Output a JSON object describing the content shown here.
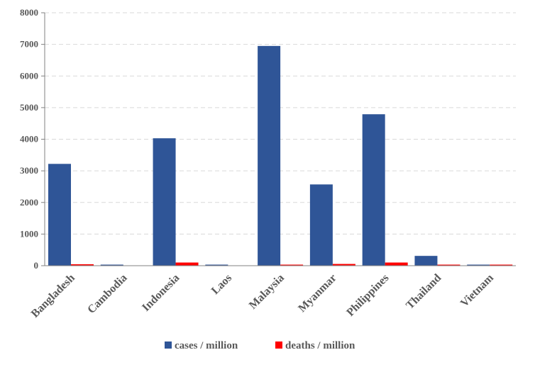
{
  "chart_data": {
    "type": "bar",
    "title": "",
    "xlabel": "",
    "ylabel": "",
    "ylim": [
      0,
      8000
    ],
    "yticks": [
      "0",
      "1000",
      "2000",
      "3000",
      "4000",
      "5000",
      "6000",
      "7000",
      "8000"
    ],
    "grid": true,
    "legend_position": "bottom",
    "categories": [
      "Bangladesh",
      "Cambodia",
      "Indonesia",
      "Laos",
      "Malaysia",
      "Myanmar",
      "Philippines",
      "Thailand",
      "Vietnam"
    ],
    "series": [
      {
        "name": "cases / million",
        "color": "#2F5597",
        "values": [
          3220,
          20,
          4030,
          15,
          6950,
          2570,
          4790,
          310,
          15
        ]
      },
      {
        "name": "deaths / million",
        "color": "#FF0000",
        "values": [
          45,
          0,
          100,
          0,
          20,
          55,
          100,
          10,
          10
        ]
      }
    ]
  }
}
